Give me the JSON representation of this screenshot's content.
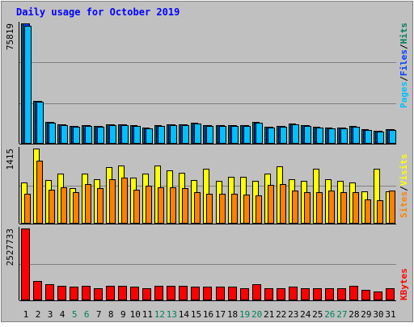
{
  "title": "Daily usage for October 2019",
  "colors": {
    "background": "#c0c0c0",
    "border": "#ffffff",
    "title": "#0000ff",
    "hits": "#00805c",
    "files": "#0040ff",
    "pages": "#00c0ff",
    "visits": "#ffff00",
    "sites": "#ff8000",
    "kbytes": "#ff0000",
    "weekday_label": "#000000",
    "weekend_label": "#00805c",
    "separator": "#000000"
  },
  "chart_data": [
    {
      "type": "bar",
      "panel": "hits-files-pages",
      "scale_label": "75819",
      "ymax": 75819,
      "legend": {
        "order": [
          "pages",
          "files",
          "hits"
        ],
        "labels": {
          "pages": "Pages",
          "files": "Files",
          "hits": "Hits"
        },
        "separator": "/"
      },
      "series": [
        {
          "name": "Hits",
          "values": [
            75819,
            27000,
            13800,
            12100,
            11300,
            11800,
            11200,
            12400,
            12300,
            11500,
            10000,
            11600,
            12400,
            12200,
            13000,
            11700,
            11700,
            11800,
            11700,
            13500,
            10700,
            11300,
            12500,
            11700,
            10500,
            10000,
            10400,
            11000,
            9000,
            8200,
            9200
          ]
        },
        {
          "name": "Files",
          "values": [
            75819,
            27000,
            13600,
            12000,
            11100,
            11600,
            11000,
            12200,
            12100,
            11300,
            9800,
            11400,
            12200,
            12000,
            12800,
            11500,
            11500,
            11600,
            11500,
            13300,
            10500,
            11100,
            12300,
            11500,
            10300,
            9800,
            10200,
            10800,
            8800,
            8000,
            9000
          ]
        },
        {
          "name": "Pages",
          "values": [
            74500,
            26300,
            13300,
            11700,
            10800,
            11300,
            10700,
            11900,
            11800,
            11000,
            9500,
            11100,
            11900,
            11700,
            12500,
            11200,
            11200,
            11300,
            11200,
            13000,
            10200,
            10800,
            12000,
            11200,
            10000,
            9500,
            9900,
            10500,
            8500,
            7700,
            8700
          ]
        }
      ]
    },
    {
      "type": "bar",
      "panel": "visits-sites",
      "scale_label": "1415",
      "ymax": 1415,
      "legend": {
        "order": [
          "sites",
          "visits"
        ],
        "labels": {
          "sites": "Sites",
          "visits": "Visits"
        },
        "separator": "/"
      },
      "series": [
        {
          "name": "Visits",
          "values": [
            780,
            1415,
            820,
            940,
            670,
            940,
            840,
            1060,
            1090,
            870,
            940,
            1090,
            1000,
            960,
            820,
            1030,
            800,
            880,
            880,
            800,
            940,
            1080,
            830,
            800,
            1030,
            830,
            800,
            780,
            610,
            1040,
            610
          ]
        },
        {
          "name": "Sites",
          "values": [
            560,
            1180,
            640,
            690,
            600,
            740,
            670,
            830,
            870,
            640,
            720,
            690,
            690,
            670,
            590,
            560,
            560,
            570,
            550,
            540,
            730,
            740,
            620,
            590,
            600,
            620,
            590,
            590,
            460,
            440,
            630
          ]
        }
      ]
    },
    {
      "type": "bar",
      "panel": "kbytes",
      "scale_label": "2527733",
      "ymax": 2527733,
      "legend": {
        "order": [
          "kbytes"
        ],
        "labels": {
          "kbytes": "KBytes"
        },
        "separator": ""
      },
      "series": [
        {
          "name": "KBytes",
          "values": [
            2527733,
            670000,
            560000,
            520000,
            480000,
            520000,
            440000,
            520000,
            520000,
            480000,
            440000,
            520000,
            520000,
            520000,
            480000,
            480000,
            480000,
            480000,
            440000,
            560000,
            440000,
            440000,
            480000,
            440000,
            440000,
            440000,
            440000,
            520000,
            360000,
            320000,
            440000
          ]
        }
      ]
    }
  ],
  "x_axis": {
    "days": [
      "1",
      "2",
      "3",
      "4",
      "5",
      "6",
      "7",
      "8",
      "9",
      "10",
      "11",
      "12",
      "13",
      "14",
      "15",
      "16",
      "17",
      "18",
      "19",
      "20",
      "21",
      "22",
      "23",
      "24",
      "25",
      "26",
      "27",
      "28",
      "29",
      "30",
      "31"
    ],
    "weekend_days": [
      "5",
      "6",
      "12",
      "13",
      "19",
      "20",
      "26",
      "27"
    ]
  }
}
